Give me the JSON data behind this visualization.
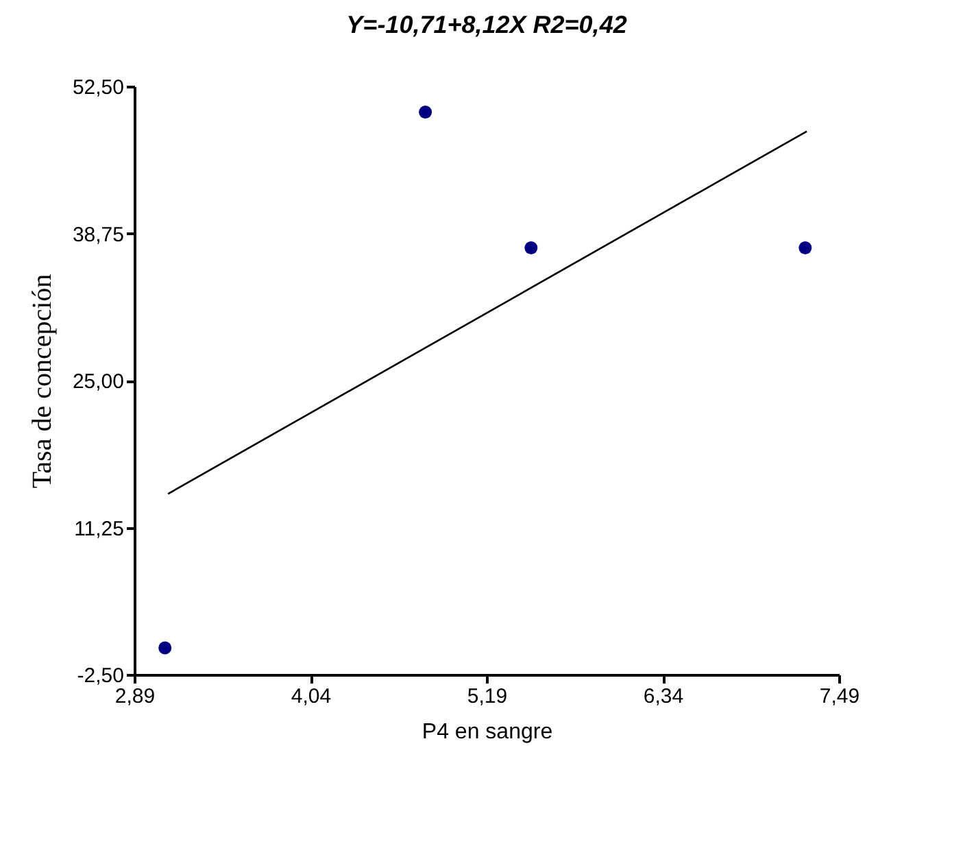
{
  "chart_data": {
    "type": "scatter",
    "title": "Y=-10,71+8,12X   R2=0,42",
    "xlabel": "P4 en sangre",
    "ylabel": "Tasa de concepción",
    "xlim": [
      2.89,
      7.49
    ],
    "ylim": [
      -2.5,
      52.5
    ],
    "xticks": [
      {
        "value": 2.89,
        "label": "2,89"
      },
      {
        "value": 4.04,
        "label": "4,04"
      },
      {
        "value": 5.19,
        "label": "5,19"
      },
      {
        "value": 6.34,
        "label": "6,34"
      },
      {
        "value": 7.49,
        "label": "7,49"
      }
    ],
    "yticks": [
      {
        "value": -2.5,
        "label": "-2,50"
      },
      {
        "value": 11.25,
        "label": "11,25"
      },
      {
        "value": 25,
        "label": "25,00"
      },
      {
        "value": 38.75,
        "label": "38,75"
      },
      {
        "value": 52.5,
        "label": "52,50"
      }
    ],
    "grid": false,
    "series": [
      {
        "marker": "circle",
        "color": "#000080",
        "x": [
          3.09,
          4.79,
          5.48,
          7.27
        ],
        "values": [
          0,
          50.1,
          37.4,
          37.4
        ]
      },
      {
        "type": "line",
        "color": "#000000",
        "x": [
          3.11,
          7.28
        ],
        "values": [
          14.4,
          48.3
        ]
      }
    ]
  }
}
